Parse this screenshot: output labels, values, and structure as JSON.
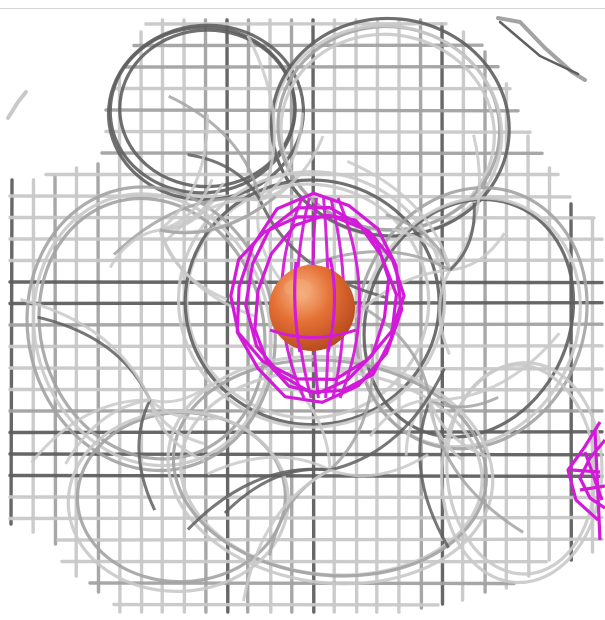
{
  "scene": {
    "background": "#ffffff",
    "mesh_color_light": "#c9c9c9",
    "mesh_color_mid": "#a3a3a3",
    "mesh_color_dark": "#5f5f5f",
    "density_color": "#d21bd8",
    "atom_color": "#e0622c",
    "atom_highlight": "#f3a874",
    "objects": [
      {
        "name": "electron-density-mesh-gray",
        "kind": "wire-mesh"
      },
      {
        "name": "electron-density-mesh-magenta",
        "kind": "wire-mesh"
      },
      {
        "name": "metal-ion-sphere",
        "kind": "sphere"
      }
    ]
  }
}
